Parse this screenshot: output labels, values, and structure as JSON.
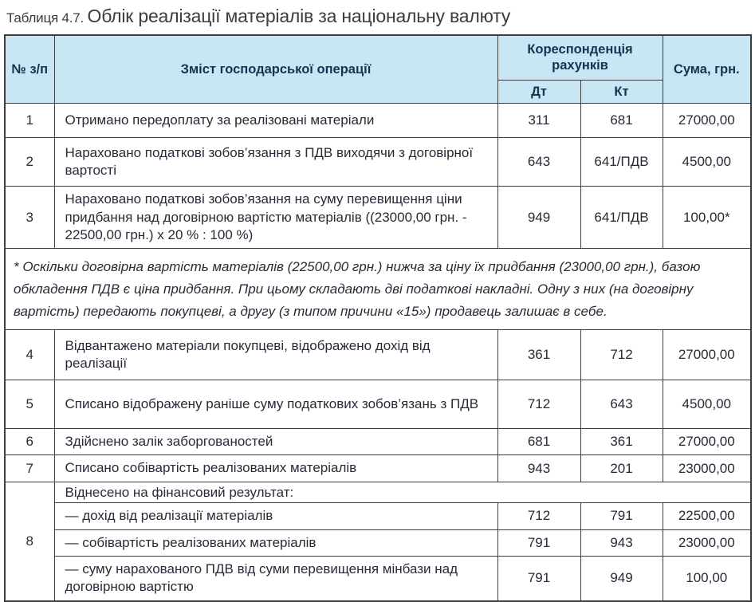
{
  "title": {
    "prefix": "Таблиця 4.7.",
    "text": "Облік реалізації матеріалів за національну валюту"
  },
  "colors": {
    "header_bg": "#c9e6f5",
    "border": "#3d3d3d",
    "body_text": "#262b36",
    "header_text": "#17334f",
    "title_text": "#3c3c3c"
  },
  "table": {
    "header": {
      "col_num": "№ з/п",
      "col_content": "Зміст господарської операції",
      "col_corr": "Кореспонденція рахунків",
      "col_dt": "Дт",
      "col_kt": "Кт",
      "col_sum": "Сума, грн."
    },
    "rows": [
      {
        "type": "data",
        "num": "1",
        "content": "Отримано передоплату за реалізовані матеріали",
        "dt": "311",
        "kt": "681",
        "sum": "27000,00"
      },
      {
        "type": "data",
        "num": "2",
        "content": "Нараховано податкові зобов’язання з ПДВ виходячи з договірної вартості",
        "dt": "643",
        "kt": "641/ПДВ",
        "sum": "4500,00"
      },
      {
        "type": "data",
        "num": "3",
        "content": "Нараховано податкові зобов’язання на суму перевищення ціни придбання над договірною вартістю матеріалів ((23000,00 грн. - 22500,00 грн.) х 20 % : 100 %)",
        "dt": "949",
        "kt": "641/ПДВ",
        "sum": "100,00*"
      },
      {
        "type": "note",
        "content": "* Оскільки договірна вартість матеріалів (22500,00 грн.) нижча за ціну їх придбання (23000,00 грн.), базою обкладення ПДВ є ціна придбання. При цьому складають дві податкові накладні. Одну з них (на договірну вартість) передають покупцеві, а другу (з типом причини «15») продавець залишає в себе."
      },
      {
        "type": "data",
        "num": "4",
        "content": "Відвантажено матеріали покупцеві, відображено дохід від реалізації",
        "dt": "361",
        "kt": "712",
        "sum": "27000,00"
      },
      {
        "type": "data",
        "num": "5",
        "content": "Списано відображену раніше суму податкових зобов’язань з ПДВ",
        "dt": "712",
        "kt": "643",
        "sum": "4500,00"
      },
      {
        "type": "data",
        "num": "6",
        "content": "Здійснено залік заборгованостей",
        "dt": "681",
        "kt": "361",
        "sum": "27000,00"
      },
      {
        "type": "data",
        "num": "7",
        "content": "Списано собівартість реалізованих матеріалів",
        "dt": "943",
        "kt": "201",
        "sum": "23000,00"
      },
      {
        "type": "group_start",
        "num": "8",
        "rowspan": 4,
        "content": "Віднесено на фінансовий результат:"
      },
      {
        "type": "sub",
        "content": "— дохід від реалізації матеріалів",
        "dt": "712",
        "kt": "791",
        "sum": "22500,00"
      },
      {
        "type": "sub",
        "content": "— собівартість реалізованих матеріалів",
        "dt": "791",
        "kt": "943",
        "sum": "23000,00"
      },
      {
        "type": "sub",
        "content": "— суму нарахованого ПДВ від суми перевищення мінбази над договірною вартістю",
        "dt": "791",
        "kt": "949",
        "sum": "100,00"
      }
    ]
  }
}
